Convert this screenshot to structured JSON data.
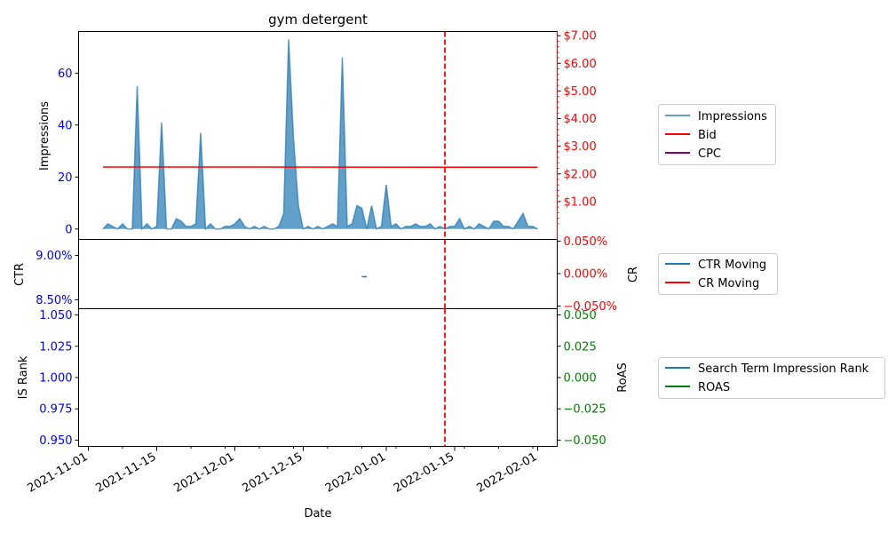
{
  "chart_data": [
    {
      "type": "area",
      "title": "gym detergent",
      "xlabel": "Date",
      "ylabel": "Impressions",
      "ylabel_right": "",
      "x_ticks": [
        "2021-11-01",
        "2021-11-15",
        "2021-12-01",
        "2021-12-15",
        "2022-01-01",
        "2022-01-15",
        "2022-02-01"
      ],
      "y_ticks_left": [
        "0",
        "20",
        "40",
        "60"
      ],
      "y_ticks_left_values": [
        0,
        20,
        40,
        60
      ],
      "y_ticks_right": [
        "$1.00",
        "$2.00",
        "$3.00",
        "$4.00",
        "$5.00",
        "$6.00",
        "$7.00"
      ],
      "y_ticks_right_values": [
        1,
        2,
        3,
        4,
        5,
        6,
        7
      ],
      "ylim_left": [
        -4,
        76
      ],
      "ylim_right": [
        -0.37,
        7.15
      ],
      "xlim": [
        "2021-10-30",
        "2022-02-05"
      ],
      "legend_placement": "right",
      "marker_date": "2022-01-13",
      "colors": {
        "impressions": "#1f77b4",
        "bid": "#ff0000",
        "cpc": "#800080",
        "marker": "#ff0000",
        "left_axis": "#0000ff",
        "right_axis": "#ff0000"
      },
      "series": [
        {
          "name": "Impressions",
          "x": [
            "2021-11-04",
            "2021-11-05",
            "2021-11-06",
            "2021-11-07",
            "2021-11-08",
            "2021-11-09",
            "2021-11-10",
            "2021-11-11",
            "2021-11-12",
            "2021-11-13",
            "2021-11-14",
            "2021-11-15",
            "2021-11-16",
            "2021-11-17",
            "2021-11-18",
            "2021-11-19",
            "2021-11-20",
            "2021-11-21",
            "2021-11-22",
            "2021-11-23",
            "2021-11-24",
            "2021-11-25",
            "2021-11-26",
            "2021-11-27",
            "2021-11-28",
            "2021-11-29",
            "2021-11-30",
            "2021-12-01",
            "2021-12-02",
            "2021-12-03",
            "2021-12-04",
            "2021-12-05",
            "2021-12-06",
            "2021-12-07",
            "2021-12-08",
            "2021-12-09",
            "2021-12-10",
            "2021-12-11",
            "2021-12-12",
            "2021-12-13",
            "2021-12-14",
            "2021-12-15",
            "2021-12-16",
            "2021-12-17",
            "2021-12-18",
            "2021-12-19",
            "2021-12-20",
            "2021-12-21",
            "2021-12-22",
            "2021-12-23",
            "2021-12-24",
            "2021-12-25",
            "2021-12-26",
            "2021-12-27",
            "2021-12-28",
            "2021-12-29",
            "2021-12-30",
            "2021-12-31",
            "2022-01-01",
            "2022-01-02",
            "2022-01-03",
            "2022-01-04",
            "2022-01-05",
            "2022-01-06",
            "2022-01-07",
            "2022-01-08",
            "2022-01-09",
            "2022-01-10",
            "2022-01-11",
            "2022-01-12",
            "2022-01-13",
            "2022-01-14",
            "2022-01-15",
            "2022-01-16",
            "2022-01-17",
            "2022-01-18",
            "2022-01-19",
            "2022-01-20",
            "2022-01-21",
            "2022-01-22",
            "2022-01-23",
            "2022-01-24",
            "2022-01-25",
            "2022-01-26",
            "2022-01-27",
            "2022-01-28",
            "2022-01-29",
            "2022-01-30",
            "2022-01-31",
            "2022-02-01"
          ],
          "values": [
            0,
            2,
            1,
            0,
            2,
            0,
            0,
            55,
            0,
            2,
            0,
            1,
            41,
            0,
            0,
            4,
            3,
            1,
            1,
            2,
            37,
            0,
            2,
            0,
            0,
            1,
            1,
            2,
            4,
            1,
            0,
            1,
            0,
            1,
            0,
            0,
            1,
            6,
            73,
            35,
            9,
            0,
            1,
            0,
            1,
            0,
            1,
            2,
            1,
            66,
            1,
            2,
            9,
            8,
            0,
            9,
            0,
            1,
            17,
            1,
            2,
            0,
            1,
            1,
            2,
            1,
            1,
            2,
            0,
            1,
            0,
            1,
            1,
            4,
            0,
            1,
            0,
            2,
            1,
            0,
            3,
            3,
            1,
            1,
            0,
            3,
            6,
            1,
            1,
            0
          ]
        },
        {
          "name": "Bid",
          "axis": "right",
          "x": [
            "2021-11-04",
            "2022-02-01"
          ],
          "values": [
            2.25,
            2.24
          ]
        },
        {
          "name": "CPC",
          "axis": "right",
          "x": [],
          "values": []
        }
      ]
    },
    {
      "type": "line",
      "ylabel": "CTR",
      "ylabel_right": "CR",
      "y_ticks_left": [
        "8.50%",
        "9.00%"
      ],
      "y_ticks_left_values": [
        8.5,
        9.0
      ],
      "y_ticks_right": [
        "−0.050%",
        "0.000%",
        "0.050%"
      ],
      "y_ticks_right_values": [
        -0.05,
        0.0,
        0.05
      ],
      "ylim_left": [
        8.4,
        9.18
      ],
      "ylim_right": [
        -0.05,
        0.05
      ],
      "legend_placement": "right",
      "colors": {
        "ctr": "#1f77b4",
        "cr": "#ff0000",
        "left_axis": "#0000ff",
        "right_axis": "#ff0000"
      },
      "series": [
        {
          "name": "CTR Moving",
          "x": [
            "2021-12-27",
            "2021-12-28"
          ],
          "values": [
            8.76,
            8.76
          ]
        },
        {
          "name": "CR Moving",
          "axis": "right",
          "x": [],
          "values": []
        }
      ]
    },
    {
      "type": "line",
      "ylabel": "IS Rank",
      "ylabel_right": "RoAS",
      "y_ticks_left": [
        "0.950",
        "0.975",
        "1.000",
        "1.025",
        "1.050"
      ],
      "y_ticks_left_values": [
        0.95,
        0.975,
        1.0,
        1.025,
        1.05
      ],
      "y_ticks_right": [
        "−0.050",
        "−0.025",
        "0.000",
        "0.025",
        "0.050"
      ],
      "y_ticks_right_values": [
        -0.05,
        -0.025,
        0.0,
        0.025,
        0.05
      ],
      "ylim_left": [
        0.945,
        1.055
      ],
      "ylim_right": [
        -0.055,
        0.055
      ],
      "legend_placement": "right",
      "colors": {
        "rank": "#1f77b4",
        "roas": "#008000",
        "left_axis": "#0000ff",
        "right_axis": "#008000"
      },
      "series": [
        {
          "name": "Search Term Impression Rank",
          "x": [],
          "values": []
        },
        {
          "name": "ROAS",
          "axis": "right",
          "x": [],
          "values": []
        }
      ]
    }
  ]
}
